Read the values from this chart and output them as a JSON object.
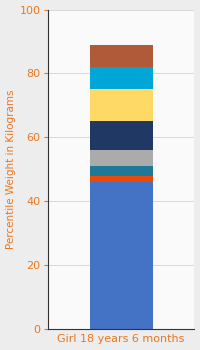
{
  "category": "Girl 18 years 6 months",
  "segments": [
    {
      "value": 46,
      "color": "#4472C4"
    },
    {
      "value": 2,
      "color": "#E84A0A"
    },
    {
      "value": 3,
      "color": "#1E7898"
    },
    {
      "value": 5,
      "color": "#ABABAB"
    },
    {
      "value": 9,
      "color": "#1F3864"
    },
    {
      "value": 10,
      "color": "#FFD966"
    },
    {
      "value": 7,
      "color": "#00A6D6"
    },
    {
      "value": 7,
      "color": "#B05A3A"
    }
  ],
  "ylabel": "Percentile Weight in Kilograms",
  "ylim": [
    0,
    100
  ],
  "yticks": [
    0,
    20,
    40,
    60,
    80,
    100
  ],
  "background_color": "#EDEDED",
  "plot_background": "#FAFAFA",
  "bar_width": 0.6,
  "ylabel_fontsize": 7.5,
  "tick_fontsize": 8,
  "xlabel_fontsize": 8,
  "tick_color": "#E87722",
  "label_color": "#E87722",
  "spine_color": "#333333",
  "grid_color": "#CCCCCC"
}
